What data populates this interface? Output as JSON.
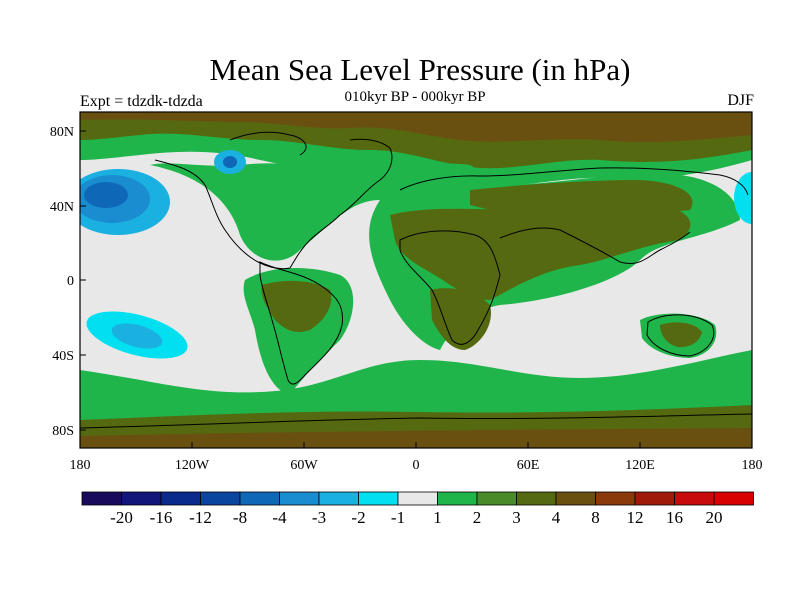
{
  "header": {
    "title": "Mean Sea Level Pressure (in hPa)",
    "subtitle": "010kyr BP - 000kyr BP",
    "experiment": "Expt = tdzdk-tdzda",
    "season": "DJF"
  },
  "axes": {
    "lat_labels": [
      "80N",
      "40N",
      "0",
      "40S",
      "80S"
    ],
    "lon_labels": [
      "180",
      "120W",
      "60W",
      "0",
      "60E",
      "120E",
      "180"
    ]
  },
  "colorbar": {
    "labels": [
      "-20",
      "-16",
      "-12",
      "-8",
      "-4",
      "-3",
      "-2",
      "-1",
      "1",
      "2",
      "3",
      "4",
      "8",
      "12",
      "16",
      "20"
    ],
    "colors": [
      "#1a0a5c",
      "#12157a",
      "#0a2a8c",
      "#0a45a0",
      "#0f67b8",
      "#1a8cd0",
      "#1ab0e0",
      "#00e0f0",
      "#e8e8e8",
      "#1fb54a",
      "#4a8a28",
      "#556a10",
      "#6a5010",
      "#8a3a0a",
      "#a01a0a",
      "#c80a0a",
      "#d80000"
    ]
  },
  "colors": {
    "background": "#e8e8e8",
    "green": "#1fb54a",
    "olive": "#556a10",
    "brown": "#6a5010",
    "cyan": "#00e0f0",
    "lightblue": "#1ab0e0",
    "blue": "#0f67b8"
  }
}
